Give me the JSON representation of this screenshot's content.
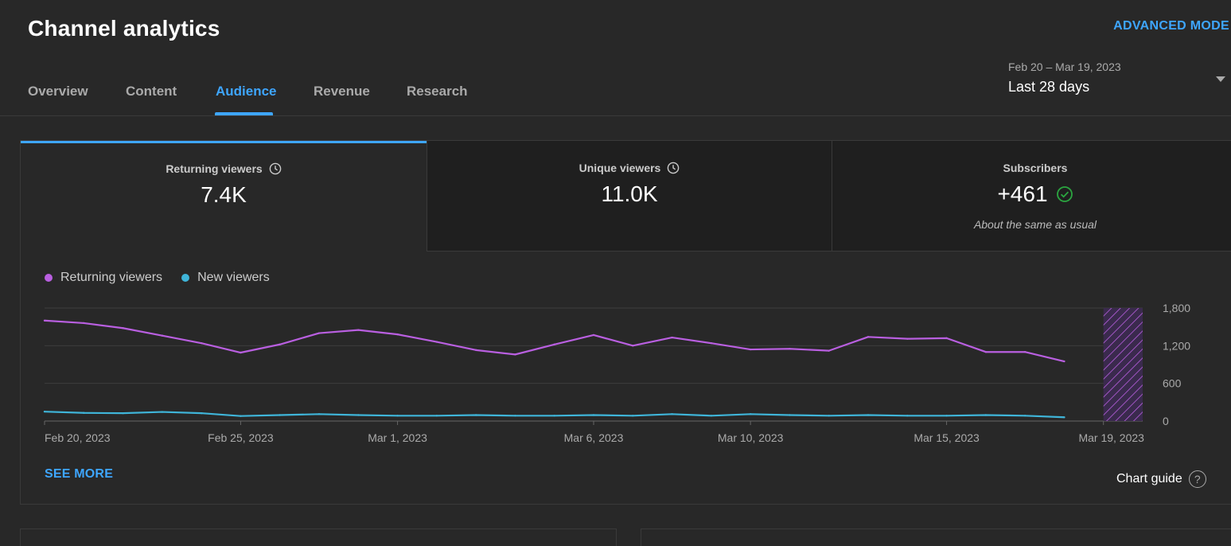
{
  "header": {
    "title": "Channel analytics",
    "advanced_mode": "ADVANCED MODE"
  },
  "tabs": [
    {
      "label": "Overview"
    },
    {
      "label": "Content"
    },
    {
      "label": "Audience",
      "active": true
    },
    {
      "label": "Revenue"
    },
    {
      "label": "Research"
    }
  ],
  "date_range": {
    "range": "Feb 20 – Mar 19, 2023",
    "label": "Last 28 days"
  },
  "metrics": [
    {
      "label": "Returning viewers",
      "value": "7.4K",
      "icon": "clock-icon"
    },
    {
      "label": "Unique viewers",
      "value": "11.0K",
      "icon": "clock-icon"
    },
    {
      "label": "Subscribers",
      "value": "+461",
      "note": "About the same as usual",
      "icon": "check-circle-icon"
    }
  ],
  "colors": {
    "accent": "#3ea6ff",
    "returning": "#b95fe0",
    "new": "#3fb5d9",
    "success": "#2ba640"
  },
  "actions": {
    "see_more": "SEE MORE",
    "chart_guide": "Chart guide",
    "help": "?"
  },
  "chart_data": {
    "type": "line",
    "x": [
      "Feb 20, 2023",
      "Feb 21, 2023",
      "Feb 22, 2023",
      "Feb 23, 2023",
      "Feb 24, 2023",
      "Feb 25, 2023",
      "Feb 26, 2023",
      "Feb 27, 2023",
      "Feb 28, 2023",
      "Mar 1, 2023",
      "Mar 2, 2023",
      "Mar 3, 2023",
      "Mar 4, 2023",
      "Mar 5, 2023",
      "Mar 6, 2023",
      "Mar 7, 2023",
      "Mar 8, 2023",
      "Mar 9, 2023",
      "Mar 10, 2023",
      "Mar 11, 2023",
      "Mar 12, 2023",
      "Mar 13, 2023",
      "Mar 14, 2023",
      "Mar 15, 2023",
      "Mar 16, 2023",
      "Mar 17, 2023",
      "Mar 18, 2023",
      "Mar 19, 2023"
    ],
    "x_ticks": [
      "Feb 20, 2023",
      "Feb 25, 2023",
      "Mar 1, 2023",
      "Mar 6, 2023",
      "Mar 10, 2023",
      "Mar 15, 2023",
      "Mar 19, 2023"
    ],
    "y_ticks": [
      "1,800",
      "1,200",
      "600",
      "0"
    ],
    "ylim": [
      0,
      1800
    ],
    "series": [
      {
        "name": "Returning viewers",
        "color": "#b95fe0",
        "values": [
          1600,
          1560,
          1480,
          1360,
          1240,
          1090,
          1220,
          1400,
          1450,
          1380,
          1260,
          1130,
          1060,
          1220,
          1370,
          1200,
          1330,
          1240,
          1140,
          1150,
          1120,
          1340,
          1310,
          1320,
          1100,
          1100,
          950,
          null
        ]
      },
      {
        "name": "New viewers",
        "color": "#3fb5d9",
        "values": [
          150,
          130,
          125,
          145,
          125,
          80,
          95,
          110,
          95,
          85,
          85,
          95,
          85,
          85,
          95,
          85,
          110,
          85,
          110,
          95,
          85,
          95,
          85,
          85,
          95,
          85,
          60,
          null
        ]
      }
    ],
    "partial_last_day": true,
    "grid": true,
    "legend": "top-left"
  }
}
